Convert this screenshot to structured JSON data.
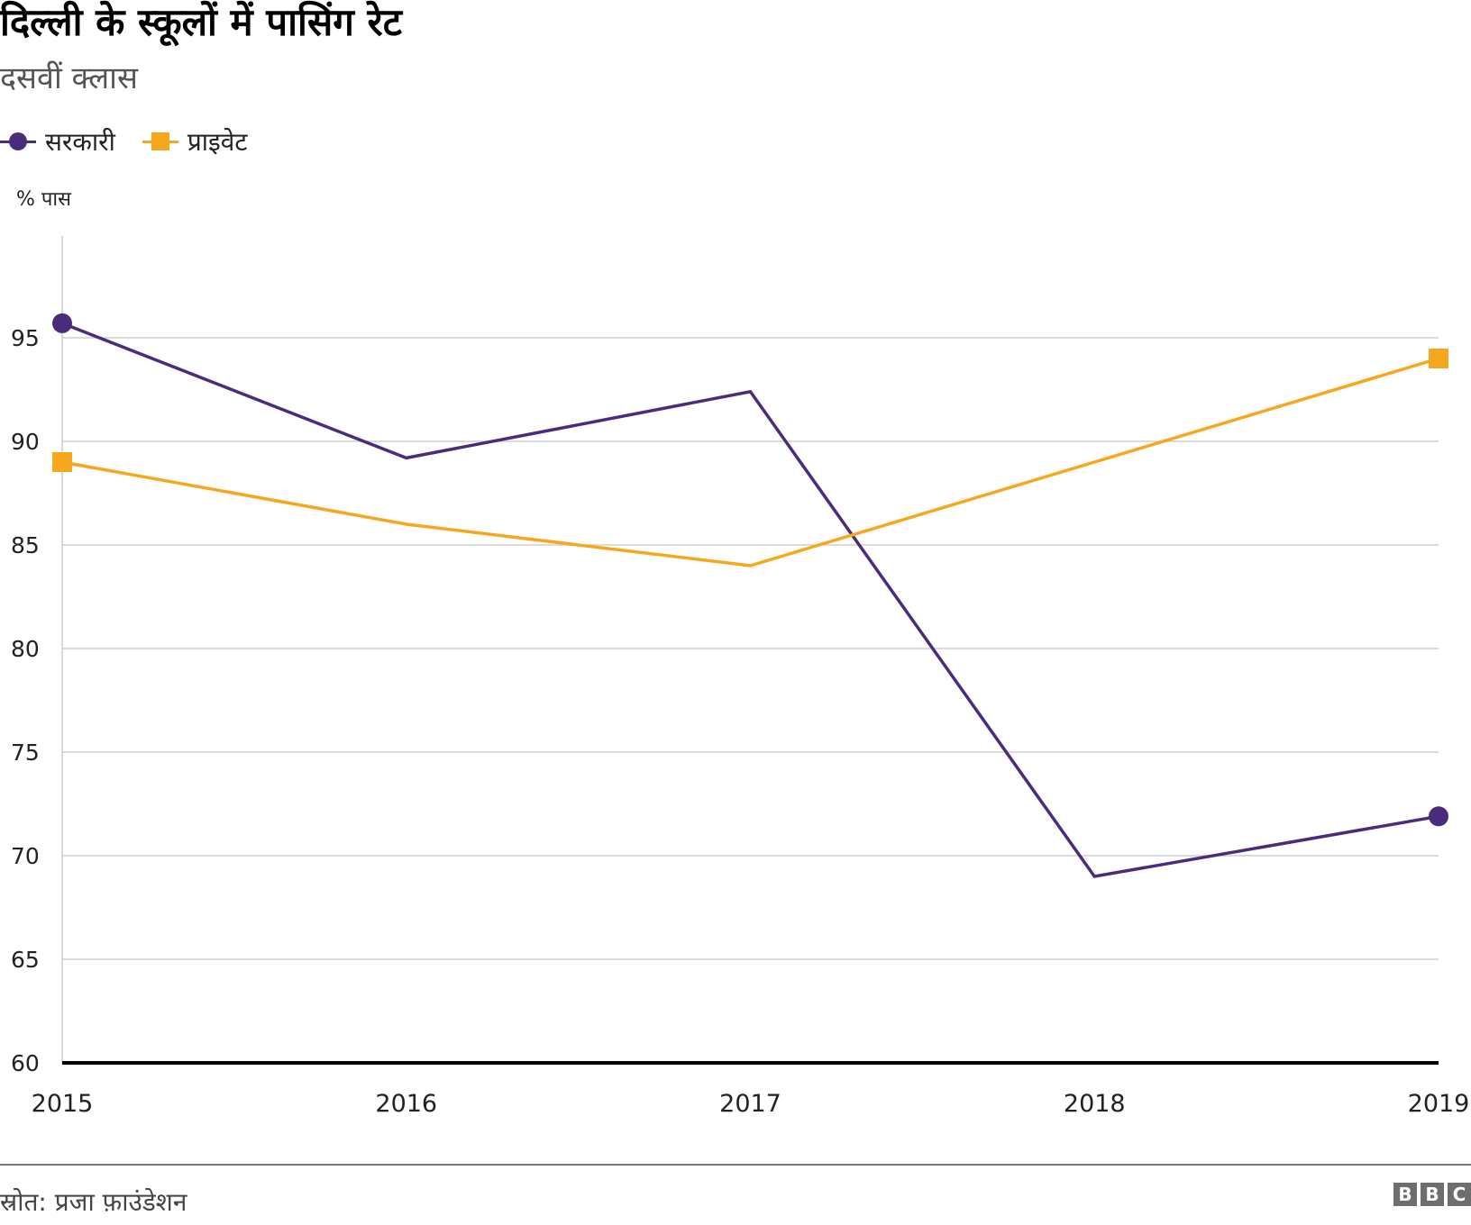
{
  "chart_data": {
    "type": "line",
    "title": "दिल्ली के स्कूलों में पासिंग रेट",
    "subtitle": "दसवीं क्लास",
    "ylabel": "% पास",
    "xlabel": "",
    "x": [
      "2015",
      "2016",
      "2017",
      "2018",
      "2019"
    ],
    "ylim": [
      60,
      100
    ],
    "yticks": [
      60,
      65,
      70,
      75,
      80,
      85,
      90,
      95
    ],
    "grid": true,
    "legend_position": "top-left",
    "series": [
      {
        "name": "सरकारी",
        "color": "#4b2c7b",
        "marker": "circle",
        "values": [
          95.7,
          89.2,
          92.4,
          69.0,
          71.9
        ]
      },
      {
        "name": "प्राइवेट",
        "color": "#f5a81e",
        "marker": "square",
        "values": [
          89.0,
          86.0,
          84.0,
          89.0,
          94.0
        ]
      }
    ]
  },
  "footer": {
    "source": "स्रोत: प्रजा फ़ाउंडेशन",
    "logo": [
      "B",
      "B",
      "C"
    ]
  }
}
